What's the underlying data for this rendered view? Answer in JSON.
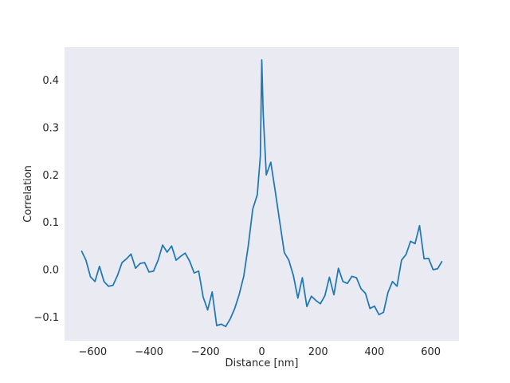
{
  "chart_data": {
    "type": "line",
    "title": "",
    "xlabel": "Distance [nm]",
    "ylabel": "Correlation",
    "xlim": [
      -700,
      700
    ],
    "ylim": [
      -0.15,
      0.47
    ],
    "grid": false,
    "background": "#EAEAF2",
    "line_color": "#1F77B4",
    "x_ticks": [
      {
        "value": -600,
        "label": "−600"
      },
      {
        "value": -400,
        "label": "−400"
      },
      {
        "value": -200,
        "label": "−200"
      },
      {
        "value": 0,
        "label": "0"
      },
      {
        "value": 200,
        "label": "200"
      },
      {
        "value": 400,
        "label": "400"
      },
      {
        "value": 600,
        "label": "600"
      }
    ],
    "y_ticks": [
      {
        "value": -0.1,
        "label": "−0.1"
      },
      {
        "value": 0.0,
        "label": "0.0"
      },
      {
        "value": 0.1,
        "label": "0.1"
      },
      {
        "value": 0.2,
        "label": "0.2"
      },
      {
        "value": 0.3,
        "label": "0.3"
      },
      {
        "value": 0.4,
        "label": "0.4"
      }
    ],
    "series": [
      {
        "x": [
          -640,
          -624,
          -608,
          -592,
          -576,
          -560,
          -544,
          -528,
          -512,
          -496,
          -480,
          -464,
          -448,
          -432,
          -416,
          -400,
          -384,
          -368,
          -352,
          -336,
          -320,
          -304,
          -288,
          -272,
          -256,
          -240,
          -224,
          -208,
          -192,
          -176,
          -160,
          -144,
          -128,
          -112,
          -96,
          -80,
          -64,
          -48,
          -32,
          -16,
          -5,
          0,
          5,
          16,
          32,
          48,
          64,
          80,
          96,
          112,
          128,
          144,
          160,
          176,
          192,
          208,
          224,
          240,
          256,
          272,
          288,
          304,
          320,
          336,
          352,
          368,
          384,
          400,
          416,
          432,
          448,
          464,
          480,
          496,
          512,
          528,
          544,
          560,
          576,
          592,
          608,
          624,
          640
        ],
        "y": [
          0.04,
          0.02,
          -0.015,
          -0.025,
          0.007,
          -0.025,
          -0.035,
          -0.033,
          -0.012,
          0.015,
          0.023,
          0.033,
          0.003,
          0.013,
          0.015,
          -0.005,
          -0.003,
          0.02,
          0.052,
          0.037,
          0.05,
          0.02,
          0.028,
          0.035,
          0.018,
          -0.007,
          -0.003,
          -0.058,
          -0.085,
          -0.047,
          -0.118,
          -0.115,
          -0.12,
          -0.104,
          -0.082,
          -0.052,
          -0.014,
          0.05,
          0.128,
          0.158,
          0.24,
          0.443,
          0.33,
          0.2,
          0.227,
          0.165,
          0.1,
          0.036,
          0.02,
          -0.012,
          -0.06,
          -0.017,
          -0.078,
          -0.056,
          -0.065,
          -0.072,
          -0.055,
          -0.016,
          -0.053,
          0.003,
          -0.025,
          -0.029,
          -0.014,
          -0.017,
          -0.04,
          -0.05,
          -0.082,
          -0.077,
          -0.095,
          -0.09,
          -0.048,
          -0.025,
          -0.035,
          0.02,
          0.032,
          0.06,
          0.055,
          0.093,
          0.023,
          0.024,
          0.0,
          0.002,
          0.018
        ]
      }
    ]
  }
}
